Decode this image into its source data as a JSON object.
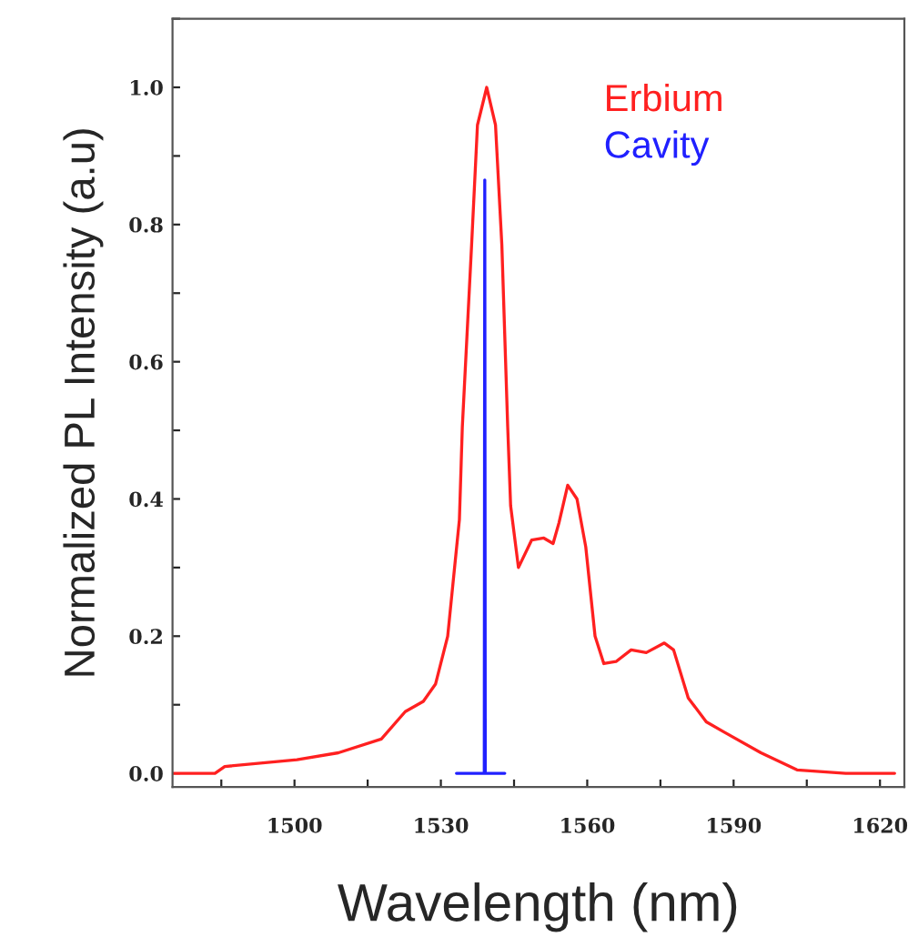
{
  "chart_data": {
    "type": "line",
    "xlabel": "Wavelength (nm)",
    "ylabel": "Normalized PL Intensity (a.u)",
    "xlim": [
      1475,
      1625
    ],
    "xticks": [
      1500,
      1530,
      1560,
      1590,
      1620
    ],
    "ylim": [
      -0.02,
      1.1
    ],
    "yticks": [
      {
        "value": 0,
        "label": "0.0"
      },
      0.2,
      0.4,
      0.6,
      0.8,
      {
        "value": 1,
        "label": "1.0"
      }
    ],
    "grid": false,
    "legend": "top right",
    "marker": "none",
    "line_style": "solid",
    "series": [
      {
        "name": "Erbium",
        "color": "#ff2020",
        "x": [
          1475.2,
          1483.7,
          1485.7,
          1500.5,
          1509,
          1517.8,
          1522.7,
          1526.4,
          1528.9,
          1531.4,
          1532.6,
          1533.8,
          1534.4,
          1536.3,
          1537.5,
          1539.4,
          1541.2,
          1542.5,
          1543.7,
          1544.3,
          1545.9,
          1548.6,
          1551.1,
          1553,
          1554.2,
          1556,
          1557.9,
          1559.7,
          1561.6,
          1563.4,
          1565.9,
          1569,
          1572.1,
          1575.8,
          1577.7,
          1580.7,
          1584.4,
          1588.1,
          1595.6,
          1603,
          1613,
          1623
        ],
        "values": [
          0.0,
          0.0,
          0.01,
          0.02,
          0.03,
          0.05,
          0.09,
          0.105,
          0.13,
          0.2,
          0.285,
          0.37,
          0.505,
          0.77,
          0.945,
          1.0,
          0.945,
          0.77,
          0.505,
          0.39,
          0.3,
          0.34,
          0.343,
          0.335,
          0.365,
          0.42,
          0.4,
          0.33,
          0.2,
          0.16,
          0.163,
          0.18,
          0.176,
          0.19,
          0.18,
          0.11,
          0.075,
          0.06,
          0.03,
          0.005,
          0.0,
          0.0
        ]
      },
      {
        "name": "Cavity",
        "color": "#2020ff",
        "x": [
          1533.2,
          1538.9,
          1539.0,
          1539.1,
          1543.1
        ],
        "values": [
          0.0,
          0.0,
          0.865,
          0.0,
          0.0
        ]
      }
    ]
  }
}
